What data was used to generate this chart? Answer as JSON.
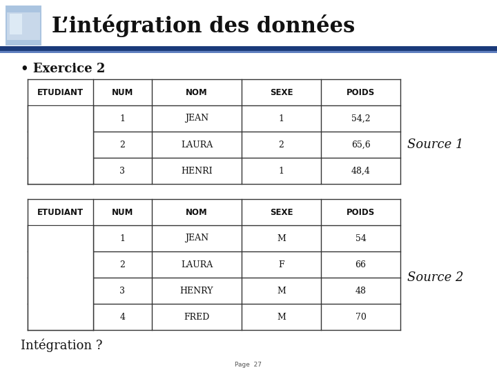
{
  "title": "L’intégration des données",
  "bullet": "• Exercice 2",
  "table1_headers": [
    "ETUDIANT",
    "NUM",
    "NOM",
    "SEXE",
    "POIDS"
  ],
  "table1_rows": [
    [
      "",
      "1",
      "JEAN",
      "1",
      "54,2"
    ],
    [
      "",
      "2",
      "LAURA",
      "2",
      "65,6"
    ],
    [
      "",
      "3",
      "HENRI",
      "1",
      "48,4"
    ]
  ],
  "table1_label": "Source 1",
  "table2_headers": [
    "ETUDIANT",
    "NUM",
    "NOM",
    "SEXE",
    "POIDS"
  ],
  "table2_rows": [
    [
      "",
      "1",
      "JEAN",
      "M",
      "54"
    ],
    [
      "",
      "2",
      "LAURA",
      "F",
      "66"
    ],
    [
      "",
      "3",
      "HENRY",
      "M",
      "48"
    ],
    [
      "",
      "4",
      "FRED",
      "M",
      "70"
    ]
  ],
  "table2_label": "Source 2",
  "footer": "Intégration ?",
  "page_label": "Page  27",
  "bg_color": "#ffffff",
  "title_color": "#111111",
  "line1_color": "#1a3a7a",
  "line2_color": "#5577bb",
  "source_label_color": "#111111",
  "table_line_color": "#333333",
  "footer_color": "#111111",
  "page_color": "#555555"
}
